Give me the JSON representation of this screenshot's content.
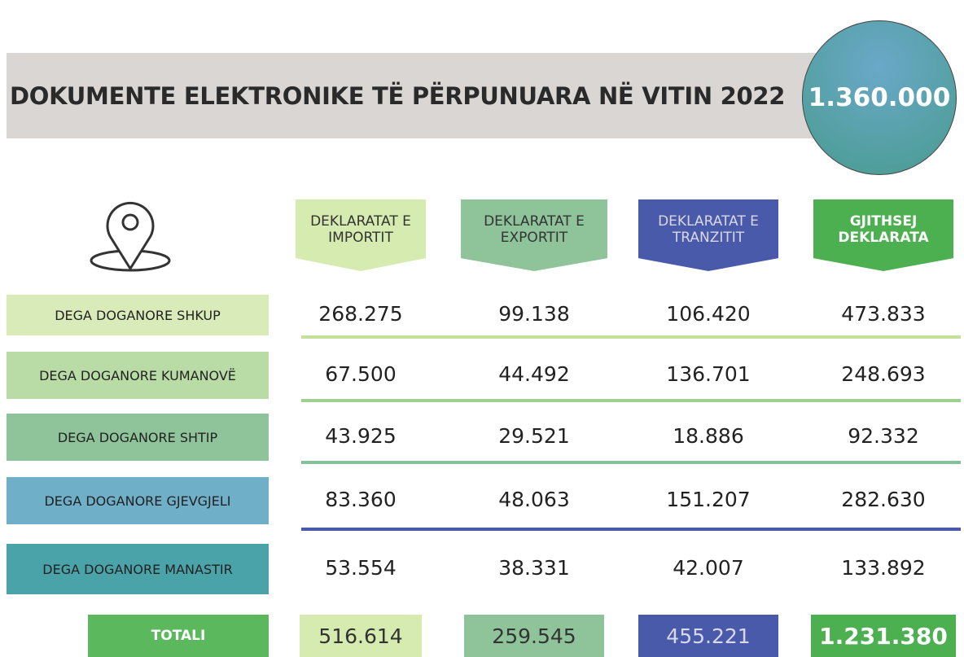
{
  "header": {
    "title": "DOKUMENTE ELEKTRONIKE TË PËRPUNUARA NË VITIN 2022",
    "total_badge": "1.360.000"
  },
  "table": {
    "headers": [
      "DEKLARATAT E IMPORTIT",
      "DEKLARATAT E EXPORTIT",
      "DEKLARATAT E TRANZITIT",
      "GJITHSEJ DEKLARATA"
    ],
    "rows": [
      {
        "label": "DEGA DOGANORE SHKUP",
        "values": [
          "268.275",
          "99.138",
          "106.420",
          "473.833"
        ]
      },
      {
        "label": "DEGA DOGANORE KUMANOVË",
        "values": [
          "67.500",
          "44.492",
          "136.701",
          "248.693"
        ]
      },
      {
        "label": "DEGA DOGANORE SHTIP",
        "values": [
          "43.925",
          "29.521",
          "18.886",
          "92.332"
        ]
      },
      {
        "label": "DEGA DOGANORE GJEVGJELI",
        "values": [
          "83.360",
          "48.063",
          "151.207",
          "282.630"
        ]
      },
      {
        "label": "DEGA DOGANORE MANASTIR",
        "values": [
          "53.554",
          "38.331",
          "42.007",
          "133.892"
        ]
      }
    ],
    "totals": {
      "label": "TOTALI",
      "values": [
        "516.614",
        "259.545",
        "455.221",
        "1.231.380"
      ]
    }
  }
}
